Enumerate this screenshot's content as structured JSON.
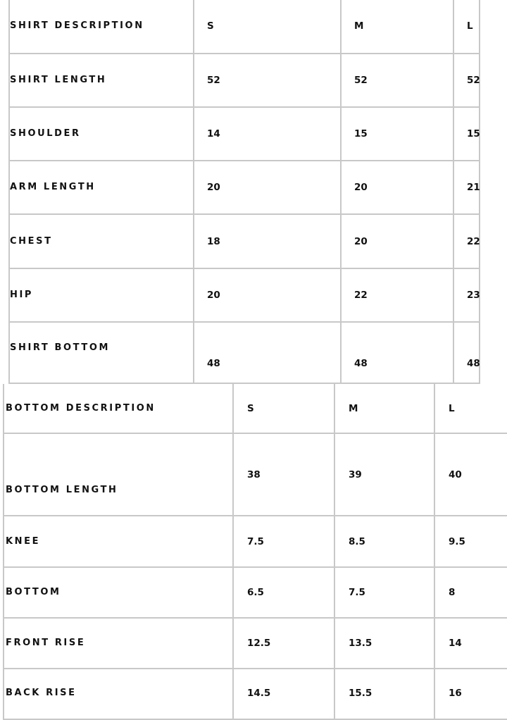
{
  "shirt_table": {
    "headers": [
      "SHIRT DESCRIPTION",
      "S",
      "M",
      "L"
    ],
    "rows": [
      {
        "label": "SHIRT LENGTH",
        "values": [
          "52",
          "52",
          "52"
        ]
      },
      {
        "label": "SHOULDER",
        "values": [
          "14",
          "15",
          "15"
        ]
      },
      {
        "label": "ARM LENGTH",
        "values": [
          "20",
          "20",
          "21"
        ]
      },
      {
        "label": "CHEST",
        "values": [
          "18",
          "20",
          "22"
        ]
      },
      {
        "label": "HIP",
        "values": [
          "20",
          "22",
          "23"
        ]
      },
      {
        "label": "SHIRT BOTTOM",
        "values": [
          "48",
          "48",
          "48"
        ]
      }
    ]
  },
  "bottom_table": {
    "headers": [
      "BOTTOM DESCRIPTION",
      "S",
      "M",
      "L"
    ],
    "rows": [
      {
        "label": "BOTTOM LENGTH",
        "values": [
          "38",
          "39",
          "40"
        ]
      },
      {
        "label": "KNEE",
        "values": [
          "7.5",
          "8.5",
          "9.5"
        ]
      },
      {
        "label": "BOTTOM",
        "values": [
          "6.5",
          "7.5",
          "8"
        ]
      },
      {
        "label": "FRONT RISE",
        "values": [
          "12.5",
          "13.5",
          "14"
        ]
      },
      {
        "label": "BACK RISE",
        "values": [
          "14.5",
          "15.5",
          "16"
        ]
      }
    ]
  }
}
